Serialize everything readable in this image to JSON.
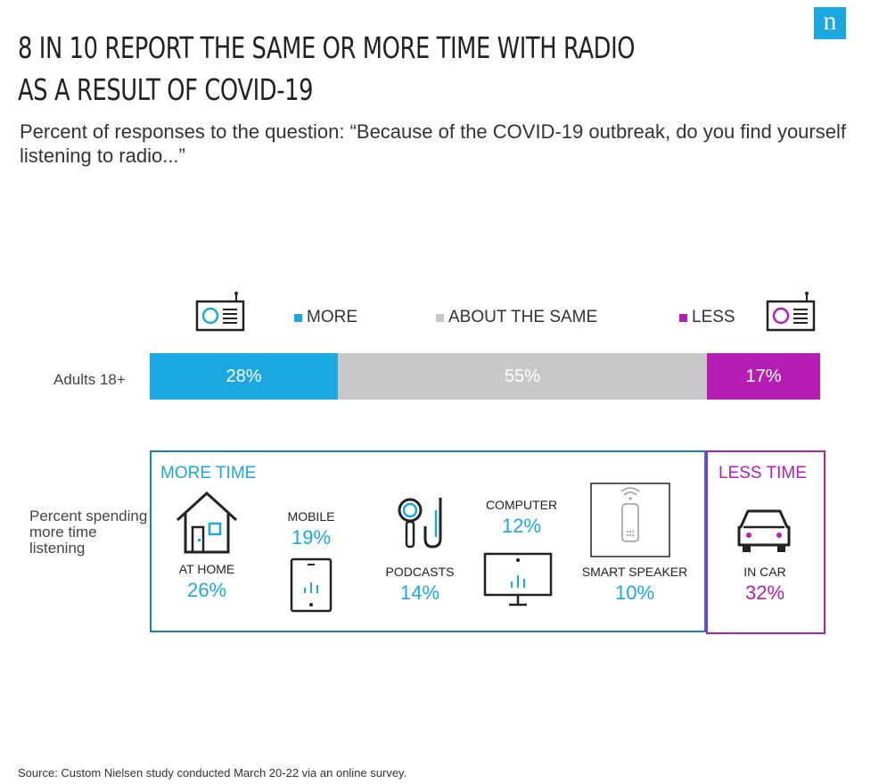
{
  "brand": {
    "logo_letter": "n",
    "color": "#1ba8e1"
  },
  "title": {
    "line1": "8 IN 10 REPORT THE SAME OR MORE TIME WITH RADIO",
    "line2": "AS A RESULT OF COVID-19"
  },
  "subtitle": "Percent of responses to the question: “Because of the COVID-19 outbreak, do you find yourself listening to radio...”",
  "colors": {
    "more": "#1ba8e1",
    "same": "#c8c8c8",
    "less": "#b51eb2",
    "more_border": "#1f7fb4"
  },
  "icons": [
    "radio-icon",
    "house-icon",
    "mobile-icon",
    "podcast-headphones-icon",
    "computer-icon",
    "smart-speaker-icon",
    "car-icon"
  ],
  "chart_data": [
    {
      "type": "bar",
      "orientation": "horizontal-stacked",
      "categories": [
        "Adults 18+"
      ],
      "series": [
        {
          "name": "MORE",
          "values": [
            28
          ],
          "label": "28%",
          "color": "#1ba8e1"
        },
        {
          "name": "ABOUT THE SAME",
          "values": [
            55
          ],
          "label": "55%",
          "color": "#c8c8c8"
        },
        {
          "name": "LESS",
          "values": [
            17
          ],
          "label": "17%",
          "color": "#b51eb2"
        }
      ],
      "legend": "top"
    },
    {
      "type": "table",
      "row_label": "Percent spending more time listening",
      "groups": [
        {
          "name": "MORE TIME",
          "items": [
            {
              "label": "AT HOME",
              "value": 26,
              "display": "26%"
            },
            {
              "label": "MOBILE",
              "value": 19,
              "display": "19%"
            },
            {
              "label": "PODCASTS",
              "value": 14,
              "display": "14%"
            },
            {
              "label": "COMPUTER",
              "value": 12,
              "display": "12%"
            },
            {
              "label": "SMART SPEAKER",
              "value": 10,
              "display": "10%"
            }
          ]
        },
        {
          "name": "LESS TIME",
          "items": [
            {
              "label": "IN CAR",
              "value": 32,
              "display": "32%"
            }
          ]
        }
      ]
    }
  ],
  "source": "Source: Custom Nielsen study conducted March 20-22 via an online survey."
}
